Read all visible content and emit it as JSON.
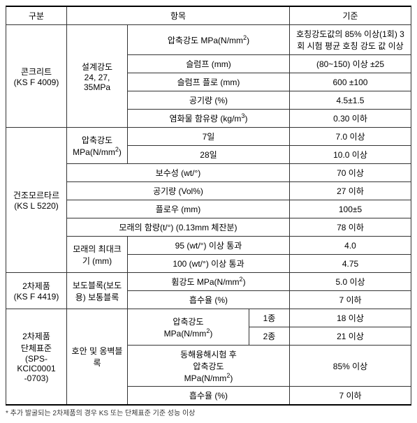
{
  "header": {
    "c1": "구분",
    "c2": "항목",
    "c3": "기준"
  },
  "concrete": {
    "group": "콘크리트\n(KS F 4009)",
    "design": "설계강도\n24, 27, 35MPa",
    "rows": {
      "compress": {
        "label": "압축강도 MPa(N/mm",
        "sup": "2",
        "close": ")",
        "std": "호칭강도값의 85% 이상(1회) 3회 시험 평균 호칭 강도 값 이상"
      },
      "slump": {
        "label": "슬럼프 (mm)",
        "std": "(80~150) 이상 ±25"
      },
      "slumpFlow": {
        "label": "슬럼프 플로 (mm)",
        "std": "600 ±100"
      },
      "air": {
        "label": "공기량 (%)",
        "std": "4.5±1.5"
      },
      "chloride": {
        "label": "염화물 함유량 (kg/m",
        "sup": "3",
        "close": ")",
        "std": "0.30 이하"
      }
    }
  },
  "mortar": {
    "group": "건조모르타르\n(KS L 5220)",
    "compLabel": "압축강도\nMPa(N/mm",
    "compSup": "2",
    "compClose": ")",
    "d7": {
      "label": "7일",
      "std": "7.0 이상"
    },
    "d28": {
      "label": "28일",
      "std": "10.0 이상"
    },
    "water": {
      "label": "보수성 (wt/°)",
      "std": "70 이상"
    },
    "air": {
      "label": "공기량 (Vol%)",
      "std": "27 이하"
    },
    "flow": {
      "label": "플로우 (mm)",
      "std": "100±5"
    },
    "sand": {
      "label": "모래의 함량(t/°) (0.13mm 체잔분)",
      "std": "78 이하"
    },
    "sandmax": {
      "label": "모래의 최대크기 (mm)",
      "r95": {
        "label": "95 (wt/°) 이상 통과",
        "std": "4.0"
      },
      "r100": {
        "label": "100 (wt/°) 이상 통과",
        "std": "4.75"
      }
    }
  },
  "prod2a": {
    "group": "2차제품\n(KS F 4419)",
    "type": "보도블록(보도용) 보통블록",
    "flex": {
      "label": "휨강도 MPa(N/mm",
      "sup": "2",
      "close": ")",
      "std": "5.0 이상"
    },
    "abs": {
      "label": "흡수율 (%)",
      "std": "7 이하"
    }
  },
  "prod2b": {
    "group": "2차제품\n단체표준\n(SPS-KCIC0001\n-0703)",
    "type": "호안 및 옹벽블록",
    "compLabel": "압축강도\nMPa(N/mm",
    "compSup": "2",
    "compClose": ")",
    "k1": {
      "c": "1종",
      "std": "18 이상"
    },
    "k2": {
      "c": "2종",
      "std": "21 이상"
    },
    "freeze": {
      "label": "동해융해시험 후\n압축강도\nMPa(N/mm",
      "sup": "2",
      "close": ")",
      "std": "85% 이상"
    },
    "abs": {
      "label": "흡수율 (%)",
      "std": "7 이하"
    }
  },
  "footnote": "* 추가 발굴되는 2차제품의 경우 KS 또는 단체표준 기준 성능 이상"
}
